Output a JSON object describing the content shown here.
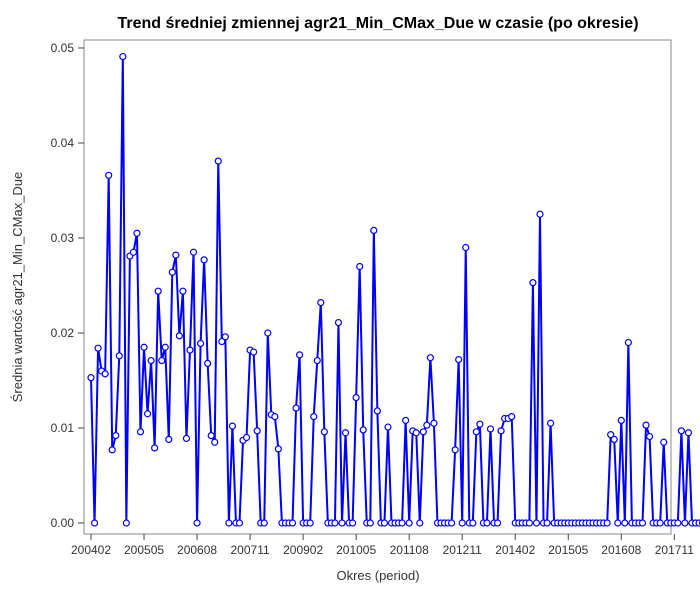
{
  "chart_data": {
    "type": "line",
    "title": "Trend średniej zmiennej agr21_Min_CMax_Due w czasie (po okresie)",
    "xlabel": "Okres (period)",
    "ylabel": "Średnia wartość agr21_Min_CMax_Due",
    "x_start": "200402",
    "xlim": [
      "200402",
      "201803"
    ],
    "ylim": [
      0,
      0.05
    ],
    "x_ticks": [
      "200402",
      "200505",
      "200608",
      "200711",
      "200902",
      "201005",
      "201108",
      "201211",
      "201402",
      "201505",
      "201608",
      "201711"
    ],
    "y_ticks": [
      "0.00",
      "0.01",
      "0.02",
      "0.03",
      "0.04",
      "0.05"
    ],
    "grid": false,
    "legend": "none",
    "colors": {
      "series": "#0000ff",
      "frame": "#888888"
    },
    "series": [
      {
        "values": [
          0.0153,
          0,
          0.0184,
          0.016,
          0.0157,
          0.0366,
          0.0077,
          0.0092,
          0.0176,
          0.0491,
          0,
          0.0281,
          0.0285,
          0.0305,
          0.0096,
          0.0185,
          0.0115,
          0.0171,
          0.0079,
          0.0244,
          0.0171,
          0.0185,
          0.0088,
          0.0264,
          0.0282,
          0.0197,
          0.0244,
          0.0089,
          0.0182,
          0.0285,
          0,
          0.0189,
          0.0277,
          0.0168,
          0.0092,
          0.0085,
          0.0381,
          0.0191,
          0.0196,
          0,
          0.0102,
          0,
          0,
          0.0087,
          0.009,
          0.0182,
          0.018,
          0.0097,
          0,
          0,
          0.02,
          0.0114,
          0.0112,
          0.0078,
          0,
          0,
          0,
          0,
          0.0121,
          0.0177,
          0,
          0,
          0,
          0.0112,
          0.0171,
          0.0232,
          0.0096,
          0,
          0,
          0,
          0.0211,
          0,
          0.0095,
          0,
          0,
          0.0132,
          0.027,
          0.0098,
          0,
          0,
          0.0308,
          0.0118,
          0,
          0,
          0.0101,
          0,
          0,
          0,
          0,
          0.0108,
          0,
          0.0097,
          0.0095,
          0,
          0.0096,
          0.0103,
          0.0174,
          0.0105,
          0,
          0,
          0,
          0,
          0,
          0.0077,
          0.0172,
          0,
          0.029,
          0,
          0,
          0.0096,
          0.0104,
          0,
          0,
          0.0099,
          0,
          0,
          0.0097,
          0.011,
          0.011,
          0.0112,
          0,
          0,
          0,
          0,
          0,
          0.0253,
          0,
          0.0325,
          0,
          0,
          0.0105,
          0,
          0,
          0,
          0,
          0,
          0,
          0,
          0,
          0,
          0,
          0,
          0,
          0,
          0,
          0,
          0,
          0.0093,
          0.0088,
          0,
          0.0108,
          0,
          0.019,
          0,
          0,
          0,
          0,
          0.0103,
          0.0091,
          0,
          0,
          0,
          0.0085,
          0,
          0,
          0,
          0,
          0.0097,
          0,
          0.0095,
          0,
          0,
          0,
          0,
          0.0114
        ]
      }
    ]
  }
}
